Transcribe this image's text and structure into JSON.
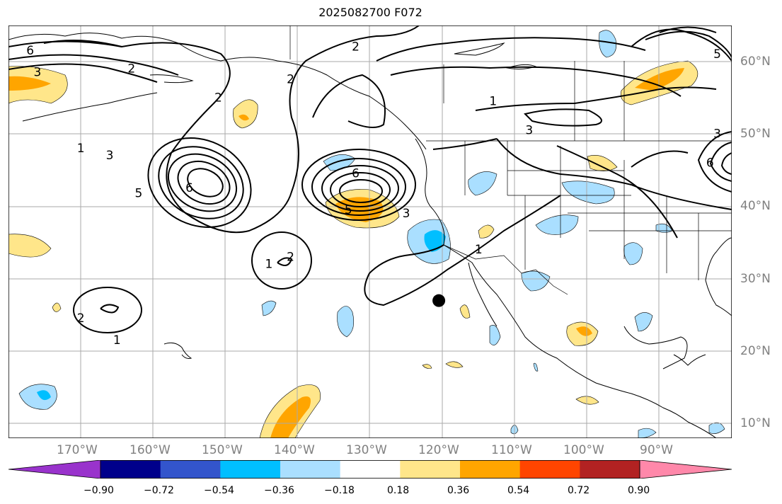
{
  "chart_data": {
    "type": "contour-map",
    "title": "2025082700 F072",
    "lon_ticks": [
      "170°W",
      "160°W",
      "150°W",
      "140°W",
      "130°W",
      "120°W",
      "110°W",
      "100°W",
      "90°W"
    ],
    "lat_ticks": [
      "10°N",
      "20°N",
      "30°N",
      "40°N",
      "50°N",
      "60°N"
    ],
    "extent": {
      "lon_min": -180,
      "lon_max": -80,
      "lat_min": 8,
      "lat_max": 65
    },
    "colorbar": {
      "ticks": [
        "−0.90",
        "−0.72",
        "−0.54",
        "−0.36",
        "−0.18",
        "0.18",
        "0.36",
        "0.54",
        "0.72",
        "0.90"
      ],
      "colors": [
        "#9933cc",
        "#00008b",
        "#3355cc",
        "#00bfff",
        "#aadfff",
        "#ffffff",
        "#ffe68a",
        "#ffa500",
        "#ff4500",
        "#b22222",
        "#ff88aa"
      ]
    },
    "contour_labels": [
      {
        "text": "6",
        "lon": -177,
        "lat": 61.5
      },
      {
        "text": "3",
        "lon": -176,
        "lat": 58.5
      },
      {
        "text": "2",
        "lon": -163,
        "lat": 59
      },
      {
        "text": "2",
        "lon": -151,
        "lat": 55
      },
      {
        "text": "1",
        "lon": -170,
        "lat": 48
      },
      {
        "text": "3",
        "lon": -166,
        "lat": 47
      },
      {
        "text": "5",
        "lon": -162,
        "lat": 41.8
      },
      {
        "text": "6",
        "lon": -155,
        "lat": 42.5
      },
      {
        "text": "2",
        "lon": -141,
        "lat": 57.5
      },
      {
        "text": "2",
        "lon": -132,
        "lat": 62
      },
      {
        "text": "6",
        "lon": -132,
        "lat": 44.5
      },
      {
        "text": "5",
        "lon": -133,
        "lat": 39.5
      },
      {
        "text": "3",
        "lon": -125,
        "lat": 39
      },
      {
        "text": "1",
        "lon": -113,
        "lat": 54.5
      },
      {
        "text": "3",
        "lon": -108,
        "lat": 50.5
      },
      {
        "text": "1",
        "lon": -144,
        "lat": 32
      },
      {
        "text": "2",
        "lon": -141,
        "lat": 33
      },
      {
        "text": "2",
        "lon": -170,
        "lat": 24.5
      },
      {
        "text": "1",
        "lon": -165,
        "lat": 21.5
      },
      {
        "text": "1",
        "lon": -115,
        "lat": 34
      },
      {
        "text": "3",
        "lon": -82,
        "lat": 50
      },
      {
        "text": "6",
        "lon": -83,
        "lat": 46
      },
      {
        "text": "5",
        "lon": -82,
        "lat": 61
      }
    ],
    "marker": {
      "lon": -120.5,
      "lat": 27
    }
  }
}
